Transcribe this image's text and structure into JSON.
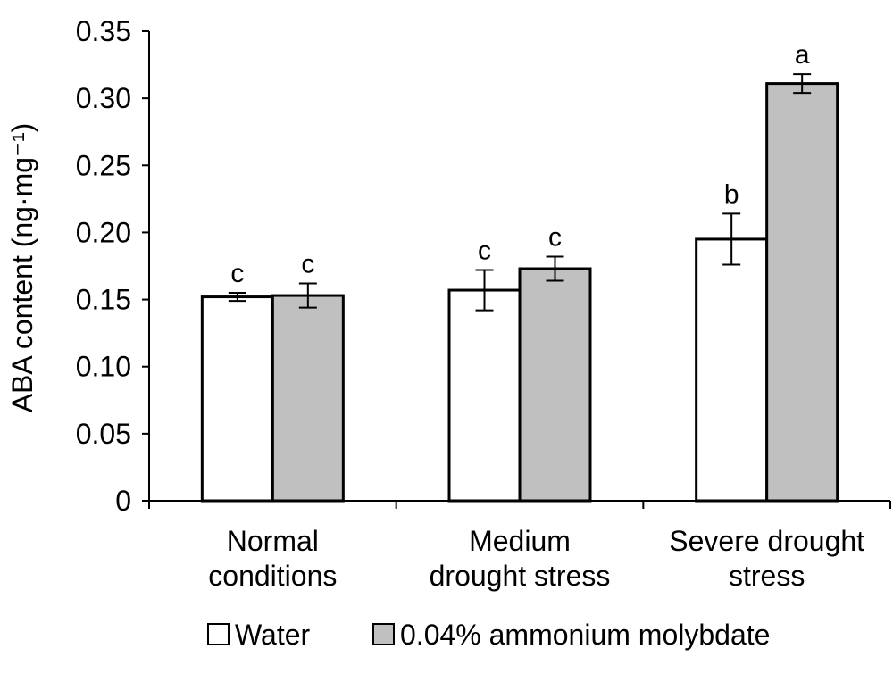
{
  "chart_data": {
    "type": "bar",
    "ylabel": "ABA content (ng·mg⁻¹)",
    "ylim": [
      0,
      0.35
    ],
    "ytick_values": [
      0,
      0.05,
      0.1,
      0.15,
      0.2,
      0.25,
      0.3,
      0.35
    ],
    "ytick_labels": [
      "0",
      "0.05",
      "0.10",
      "0.15",
      "0.20",
      "0.25",
      "0.30",
      "0.35"
    ],
    "categories": [
      [
        "Normal",
        "conditions"
      ],
      [
        "Medium",
        "drought stress"
      ],
      [
        "Severe drought",
        "stress"
      ]
    ],
    "series": [
      {
        "name": "Water",
        "color": "#ffffff",
        "values": [
          0.152,
          0.157,
          0.195
        ],
        "errors": [
          0.003,
          0.015,
          0.019
        ],
        "letters": [
          "c",
          "c",
          "b"
        ]
      },
      {
        "name": "0.04% ammonium molybdate",
        "color": "#c0c0c0",
        "values": [
          0.153,
          0.173,
          0.311
        ],
        "errors": [
          0.009,
          0.009,
          0.007
        ],
        "letters": [
          "c",
          "c",
          "a"
        ]
      }
    ],
    "grid": false,
    "legend": "bottom"
  }
}
